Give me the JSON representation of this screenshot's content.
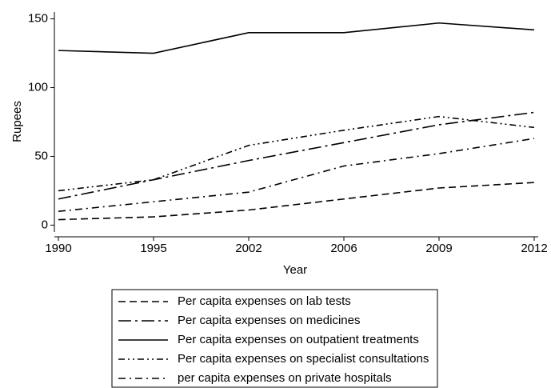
{
  "chart_data": {
    "type": "line",
    "categories": [
      "1990",
      "1995",
      "2002",
      "2006",
      "2009",
      "2012"
    ],
    "x_label": "Year",
    "y_label": "Rupees",
    "ylim": [
      -5,
      155
    ],
    "yticks": [
      0,
      50,
      100,
      150
    ],
    "legend": "bottom",
    "series": [
      {
        "name": "Per capita expenses on lab tests",
        "color": "#000000",
        "dash": "dash",
        "values": [
          4,
          6,
          11,
          19,
          27,
          31
        ]
      },
      {
        "name": "Per capita expenses on medicines",
        "color": "#000000",
        "dash": "longdash-dot",
        "values": [
          19,
          33,
          47,
          60,
          73,
          82
        ]
      },
      {
        "name": "Per capita expenses on outpatient treatments",
        "color": "#000000",
        "dash": "solid",
        "values": [
          127,
          125,
          140,
          140,
          147,
          142
        ]
      },
      {
        "name": "Per capita expenses on specialist consultations",
        "color": "#000000",
        "dash": "dash-dot-dot",
        "values": [
          25,
          33,
          58,
          69,
          79,
          71
        ]
      },
      {
        "name": "per capita expenses on private hospitals",
        "color": "#000000",
        "dash": "dash-dot",
        "values": [
          10,
          17,
          24,
          43,
          52,
          63
        ]
      }
    ]
  }
}
